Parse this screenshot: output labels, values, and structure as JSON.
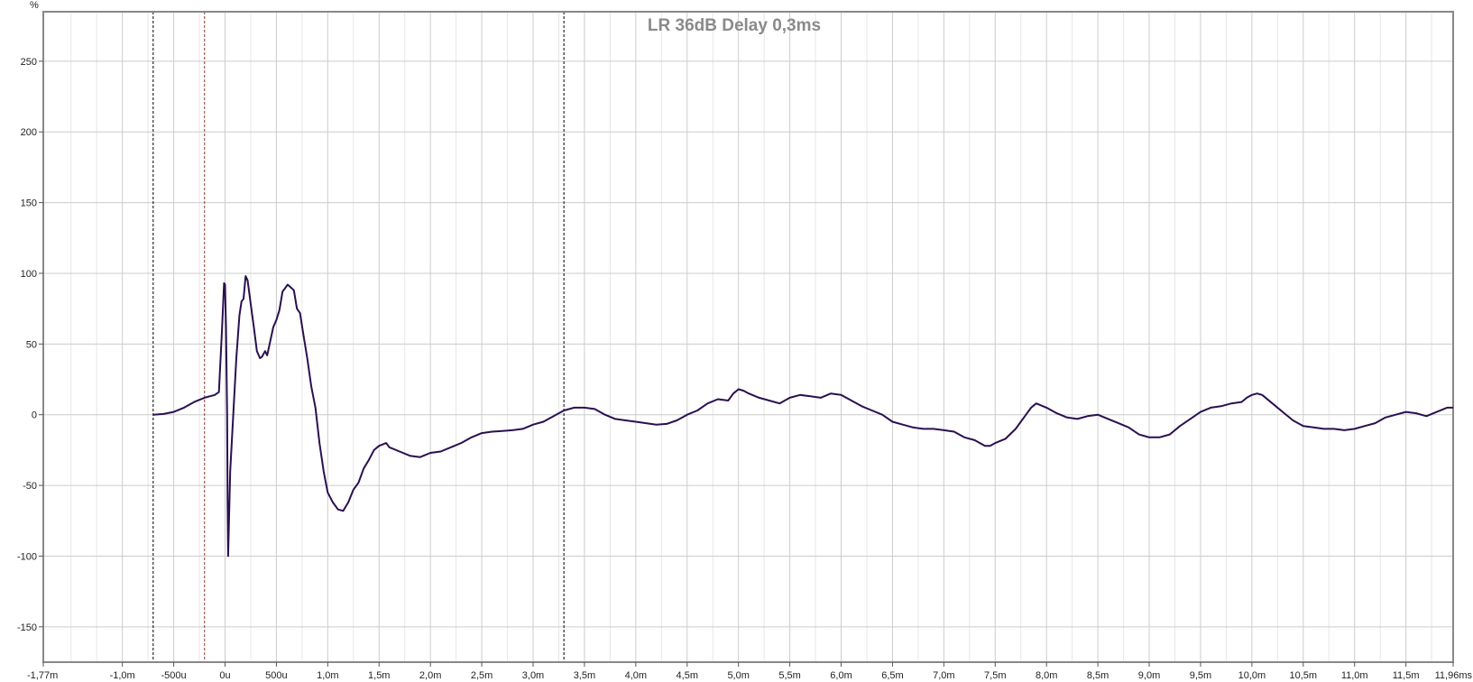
{
  "chart_data": {
    "type": "line",
    "title": "LR 36dB Delay 0,3ms",
    "ylabel": "%",
    "xlabel": "",
    "xlim": [
      -1.77,
      11.96
    ],
    "ylim": [
      -175,
      285
    ],
    "grid": true,
    "legend": "none",
    "x_unit": "ms",
    "y_unit": "%",
    "x_ticks": [
      {
        "value": -1.77,
        "label": "-1,77m"
      },
      {
        "value": -1.0,
        "label": "-1,0m"
      },
      {
        "value": -0.5,
        "label": "-500u"
      },
      {
        "value": 0.0,
        "label": "0u"
      },
      {
        "value": 0.5,
        "label": "500u"
      },
      {
        "value": 1.0,
        "label": "1,0m"
      },
      {
        "value": 1.5,
        "label": "1,5m"
      },
      {
        "value": 2.0,
        "label": "2,0m"
      },
      {
        "value": 2.5,
        "label": "2,5m"
      },
      {
        "value": 3.0,
        "label": "3,0m"
      },
      {
        "value": 3.5,
        "label": "3,5m"
      },
      {
        "value": 4.0,
        "label": "4,0m"
      },
      {
        "value": 4.5,
        "label": "4,5m"
      },
      {
        "value": 5.0,
        "label": "5,0m"
      },
      {
        "value": 5.5,
        "label": "5,5m"
      },
      {
        "value": 6.0,
        "label": "6,0m"
      },
      {
        "value": 6.5,
        "label": "6,5m"
      },
      {
        "value": 7.0,
        "label": "7,0m"
      },
      {
        "value": 7.5,
        "label": "7,5m"
      },
      {
        "value": 8.0,
        "label": "8,0m"
      },
      {
        "value": 8.5,
        "label": "8,5m"
      },
      {
        "value": 9.0,
        "label": "9,0m"
      },
      {
        "value": 9.5,
        "label": "9,5m"
      },
      {
        "value": 10.0,
        "label": "10,0m"
      },
      {
        "value": 10.5,
        "label": "10,5m"
      },
      {
        "value": 11.0,
        "label": "11,0m"
      },
      {
        "value": 11.5,
        "label": "11,5m"
      },
      {
        "value": 11.96,
        "label": "11,96ms"
      }
    ],
    "x_minor_ticks": [
      -1.5,
      -1.25,
      -0.75,
      -0.25,
      0.25,
      0.75,
      1.25,
      1.75,
      2.25,
      2.75,
      3.25,
      3.75,
      4.25,
      4.75,
      5.25,
      5.75,
      6.25,
      6.75,
      7.25,
      7.75,
      8.25,
      8.75,
      9.25,
      9.75,
      10.25,
      10.75,
      11.25,
      11.75
    ],
    "y_ticks": [
      {
        "value": 250,
        "label": "250"
      },
      {
        "value": 200,
        "label": "200"
      },
      {
        "value": 150,
        "label": "150"
      },
      {
        "value": 100,
        "label": "100"
      },
      {
        "value": 50,
        "label": "50"
      },
      {
        "value": 0,
        "label": "0"
      },
      {
        "value": -50,
        "label": "-50"
      },
      {
        "value": -100,
        "label": "-100"
      },
      {
        "value": -150,
        "label": "-150"
      }
    ],
    "markers": [
      {
        "x": -0.7,
        "color": "#000000"
      },
      {
        "x": -0.2,
        "color": "#8b3a2a"
      },
      {
        "x": 3.3,
        "color": "#000000"
      }
    ],
    "colors": {
      "series": "#2a1050",
      "grid": "#cccccc",
      "axis": "#888888",
      "title": "#8a8a8a"
    },
    "series": [
      {
        "color": "#2a1050",
        "points": [
          [
            -0.7,
            0
          ],
          [
            -0.6,
            0.5
          ],
          [
            -0.5,
            2
          ],
          [
            -0.4,
            5
          ],
          [
            -0.3,
            9
          ],
          [
            -0.2,
            12
          ],
          [
            -0.1,
            14
          ],
          [
            -0.06,
            16
          ],
          [
            -0.03,
            60
          ],
          [
            -0.01,
            93
          ],
          [
            0.0,
            92
          ],
          [
            0.01,
            60
          ],
          [
            0.02,
            0
          ],
          [
            0.025,
            -60
          ],
          [
            0.03,
            -100
          ],
          [
            0.05,
            -40
          ],
          [
            0.08,
            0
          ],
          [
            0.11,
            40
          ],
          [
            0.14,
            70
          ],
          [
            0.16,
            80
          ],
          [
            0.18,
            82
          ],
          [
            0.2,
            98
          ],
          [
            0.22,
            95
          ],
          [
            0.25,
            78
          ],
          [
            0.28,
            62
          ],
          [
            0.31,
            45
          ],
          [
            0.34,
            40
          ],
          [
            0.36,
            41
          ],
          [
            0.39,
            45
          ],
          [
            0.41,
            42
          ],
          [
            0.44,
            52
          ],
          [
            0.47,
            62
          ],
          [
            0.5,
            67
          ],
          [
            0.53,
            74
          ],
          [
            0.56,
            87
          ],
          [
            0.59,
            90
          ],
          [
            0.61,
            92
          ],
          [
            0.64,
            90
          ],
          [
            0.67,
            88
          ],
          [
            0.7,
            75
          ],
          [
            0.73,
            72
          ],
          [
            0.76,
            58
          ],
          [
            0.8,
            40
          ],
          [
            0.84,
            20
          ],
          [
            0.88,
            5
          ],
          [
            0.92,
            -20
          ],
          [
            0.96,
            -40
          ],
          [
            1.0,
            -55
          ],
          [
            1.05,
            -62
          ],
          [
            1.1,
            -67
          ],
          [
            1.15,
            -68
          ],
          [
            1.2,
            -62
          ],
          [
            1.25,
            -53
          ],
          [
            1.3,
            -48
          ],
          [
            1.35,
            -38
          ],
          [
            1.4,
            -32
          ],
          [
            1.45,
            -25
          ],
          [
            1.5,
            -22
          ],
          [
            1.57,
            -20
          ],
          [
            1.6,
            -23
          ],
          [
            1.7,
            -26
          ],
          [
            1.8,
            -29
          ],
          [
            1.9,
            -30
          ],
          [
            2.0,
            -27
          ],
          [
            2.1,
            -26
          ],
          [
            2.2,
            -23
          ],
          [
            2.3,
            -20
          ],
          [
            2.4,
            -16
          ],
          [
            2.5,
            -13
          ],
          [
            2.6,
            -12
          ],
          [
            2.7,
            -11.5
          ],
          [
            2.8,
            -11
          ],
          [
            2.9,
            -10
          ],
          [
            3.0,
            -7
          ],
          [
            3.1,
            -5
          ],
          [
            3.2,
            -1
          ],
          [
            3.3,
            3
          ],
          [
            3.4,
            5
          ],
          [
            3.5,
            5
          ],
          [
            3.6,
            4
          ],
          [
            3.7,
            0
          ],
          [
            3.8,
            -3
          ],
          [
            3.9,
            -4
          ],
          [
            4.0,
            -5
          ],
          [
            4.1,
            -6
          ],
          [
            4.2,
            -7
          ],
          [
            4.3,
            -6.5
          ],
          [
            4.4,
            -4
          ],
          [
            4.5,
            0
          ],
          [
            4.6,
            3
          ],
          [
            4.7,
            8
          ],
          [
            4.8,
            11
          ],
          [
            4.9,
            10
          ],
          [
            4.95,
            15
          ],
          [
            5.0,
            18
          ],
          [
            5.05,
            17
          ],
          [
            5.1,
            15
          ],
          [
            5.2,
            12
          ],
          [
            5.3,
            10
          ],
          [
            5.4,
            8
          ],
          [
            5.5,
            12
          ],
          [
            5.6,
            14
          ],
          [
            5.7,
            13
          ],
          [
            5.8,
            12
          ],
          [
            5.9,
            15
          ],
          [
            6.0,
            14
          ],
          [
            6.1,
            10
          ],
          [
            6.2,
            6
          ],
          [
            6.3,
            3
          ],
          [
            6.4,
            0
          ],
          [
            6.5,
            -5
          ],
          [
            6.6,
            -7
          ],
          [
            6.7,
            -9
          ],
          [
            6.8,
            -10
          ],
          [
            6.9,
            -10
          ],
          [
            7.0,
            -11
          ],
          [
            7.1,
            -12
          ],
          [
            7.2,
            -16
          ],
          [
            7.3,
            -18
          ],
          [
            7.4,
            -22
          ],
          [
            7.45,
            -22
          ],
          [
            7.5,
            -20
          ],
          [
            7.6,
            -17
          ],
          [
            7.7,
            -10
          ],
          [
            7.8,
            0
          ],
          [
            7.85,
            5
          ],
          [
            7.9,
            8
          ],
          [
            8.0,
            5
          ],
          [
            8.1,
            1
          ],
          [
            8.2,
            -2
          ],
          [
            8.3,
            -3
          ],
          [
            8.4,
            -1
          ],
          [
            8.5,
            0
          ],
          [
            8.6,
            -3
          ],
          [
            8.7,
            -6
          ],
          [
            8.8,
            -9
          ],
          [
            8.9,
            -14
          ],
          [
            9.0,
            -16
          ],
          [
            9.1,
            -16
          ],
          [
            9.2,
            -14
          ],
          [
            9.3,
            -8
          ],
          [
            9.4,
            -3
          ],
          [
            9.5,
            2
          ],
          [
            9.6,
            5
          ],
          [
            9.7,
            6
          ],
          [
            9.8,
            8
          ],
          [
            9.9,
            9
          ],
          [
            9.95,
            12
          ],
          [
            10.0,
            14
          ],
          [
            10.05,
            15
          ],
          [
            10.1,
            14
          ],
          [
            10.2,
            8
          ],
          [
            10.3,
            2
          ],
          [
            10.4,
            -4
          ],
          [
            10.5,
            -8
          ],
          [
            10.6,
            -9
          ],
          [
            10.7,
            -10
          ],
          [
            10.8,
            -10
          ],
          [
            10.9,
            -11
          ],
          [
            11.0,
            -10
          ],
          [
            11.1,
            -8
          ],
          [
            11.2,
            -6
          ],
          [
            11.3,
            -2
          ],
          [
            11.4,
            0
          ],
          [
            11.5,
            2
          ],
          [
            11.6,
            1
          ],
          [
            11.7,
            -1
          ],
          [
            11.8,
            2
          ],
          [
            11.9,
            5
          ],
          [
            11.96,
            5
          ]
        ]
      }
    ]
  }
}
